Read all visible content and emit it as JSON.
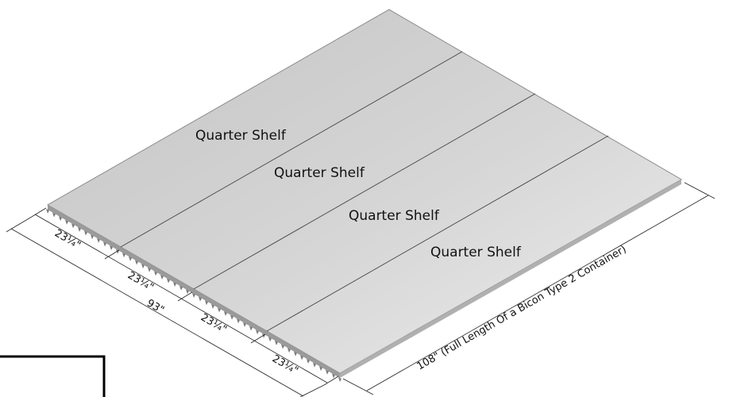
{
  "diagram": {
    "panels": [
      {
        "label": "Quarter Shelf"
      },
      {
        "label": "Quarter Shelf"
      },
      {
        "label": "Quarter Shelf"
      },
      {
        "label": "Quarter Shelf"
      }
    ],
    "dimensions": {
      "panel_widths": [
        "23¼\"",
        "23¼\"",
        "23¼\"",
        "23¼\""
      ],
      "total_width": "93\"",
      "length": "108\" (Full Length Of a Bicon Type 2 Container)"
    },
    "colors": {
      "panel_light": "#e4e4e4",
      "panel_dark": "#c6c6c6",
      "edge": "#9a9a9a"
    }
  }
}
